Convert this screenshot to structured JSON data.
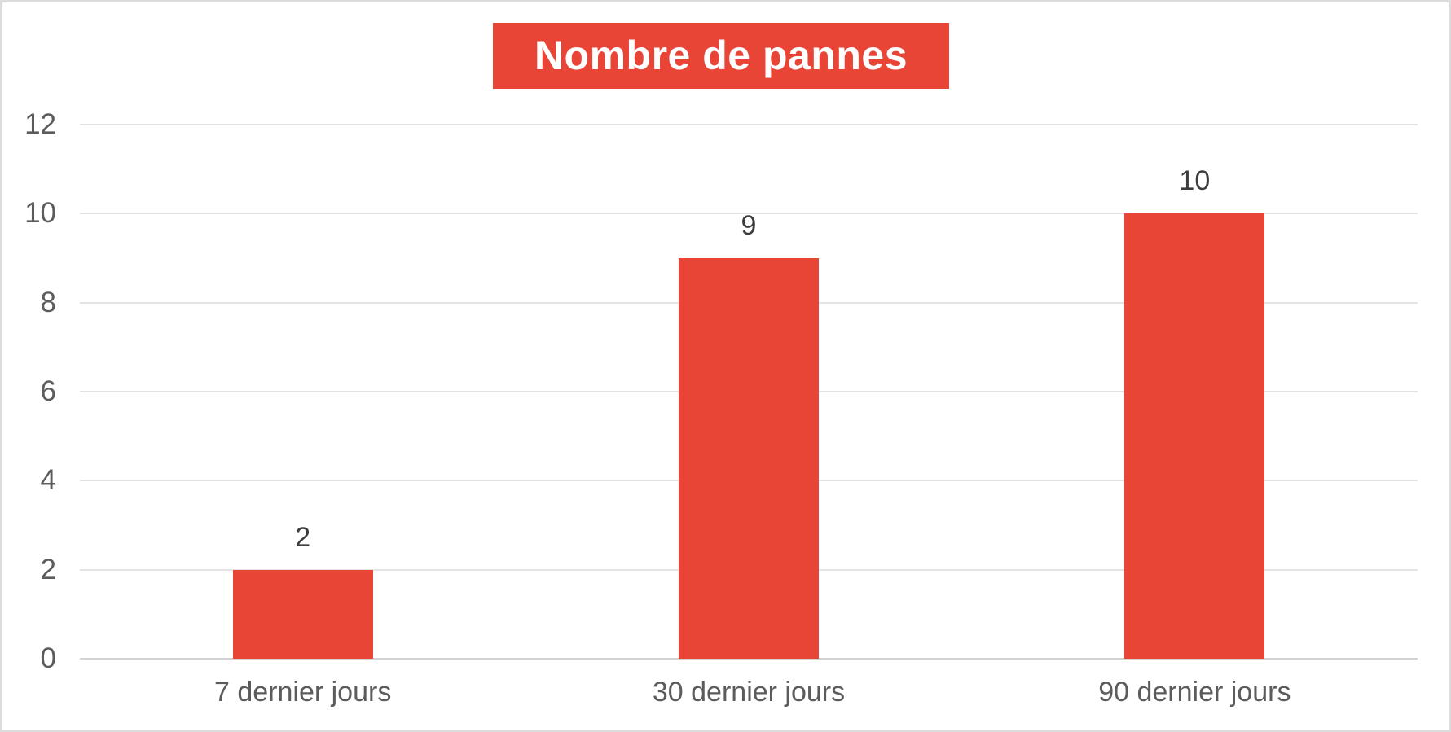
{
  "chart": {
    "title": "Nombre de pannes"
  },
  "chart_data": {
    "type": "bar",
    "title": "Nombre de pannes",
    "categories": [
      "7 dernier jours",
      "30 dernier jours",
      "90 dernier jours"
    ],
    "values": [
      2,
      9,
      10
    ],
    "data_labels": [
      "2",
      "9",
      "10"
    ],
    "ytick_labels": [
      "0",
      "2",
      "4",
      "6",
      "8",
      "10",
      "12"
    ],
    "ylim": [
      0,
      12
    ],
    "ytick_step": 2,
    "grid": "horizontal",
    "legend": "none",
    "colors": {
      "bar": "#e94537",
      "title_bg": "#e94537",
      "title_text": "#ffffff",
      "gridline": "#e3e3e3",
      "axis_line": "#d2d2d2",
      "tick_text": "#5c5c5c",
      "value_label_text": "#3d3d3d",
      "frame_border": "#dcdcdc"
    }
  }
}
